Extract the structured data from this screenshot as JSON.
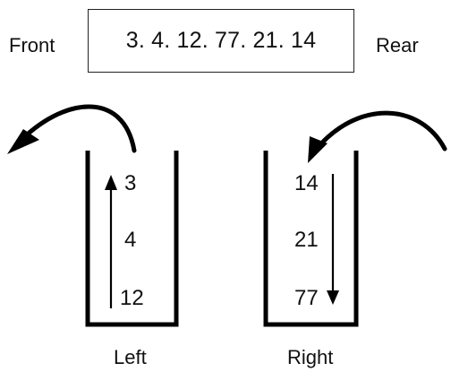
{
  "queue": {
    "front_label": "Front",
    "rear_label": "Rear",
    "contents": "3. 4. 12. 77. 21. 14"
  },
  "stacks": {
    "left": {
      "label": "Left",
      "items": [
        "3",
        "4",
        "12"
      ]
    },
    "right": {
      "label": "Right",
      "items": [
        "14",
        "21",
        "77"
      ]
    }
  },
  "colors": {
    "stroke": "#000000",
    "text": "#111111"
  }
}
